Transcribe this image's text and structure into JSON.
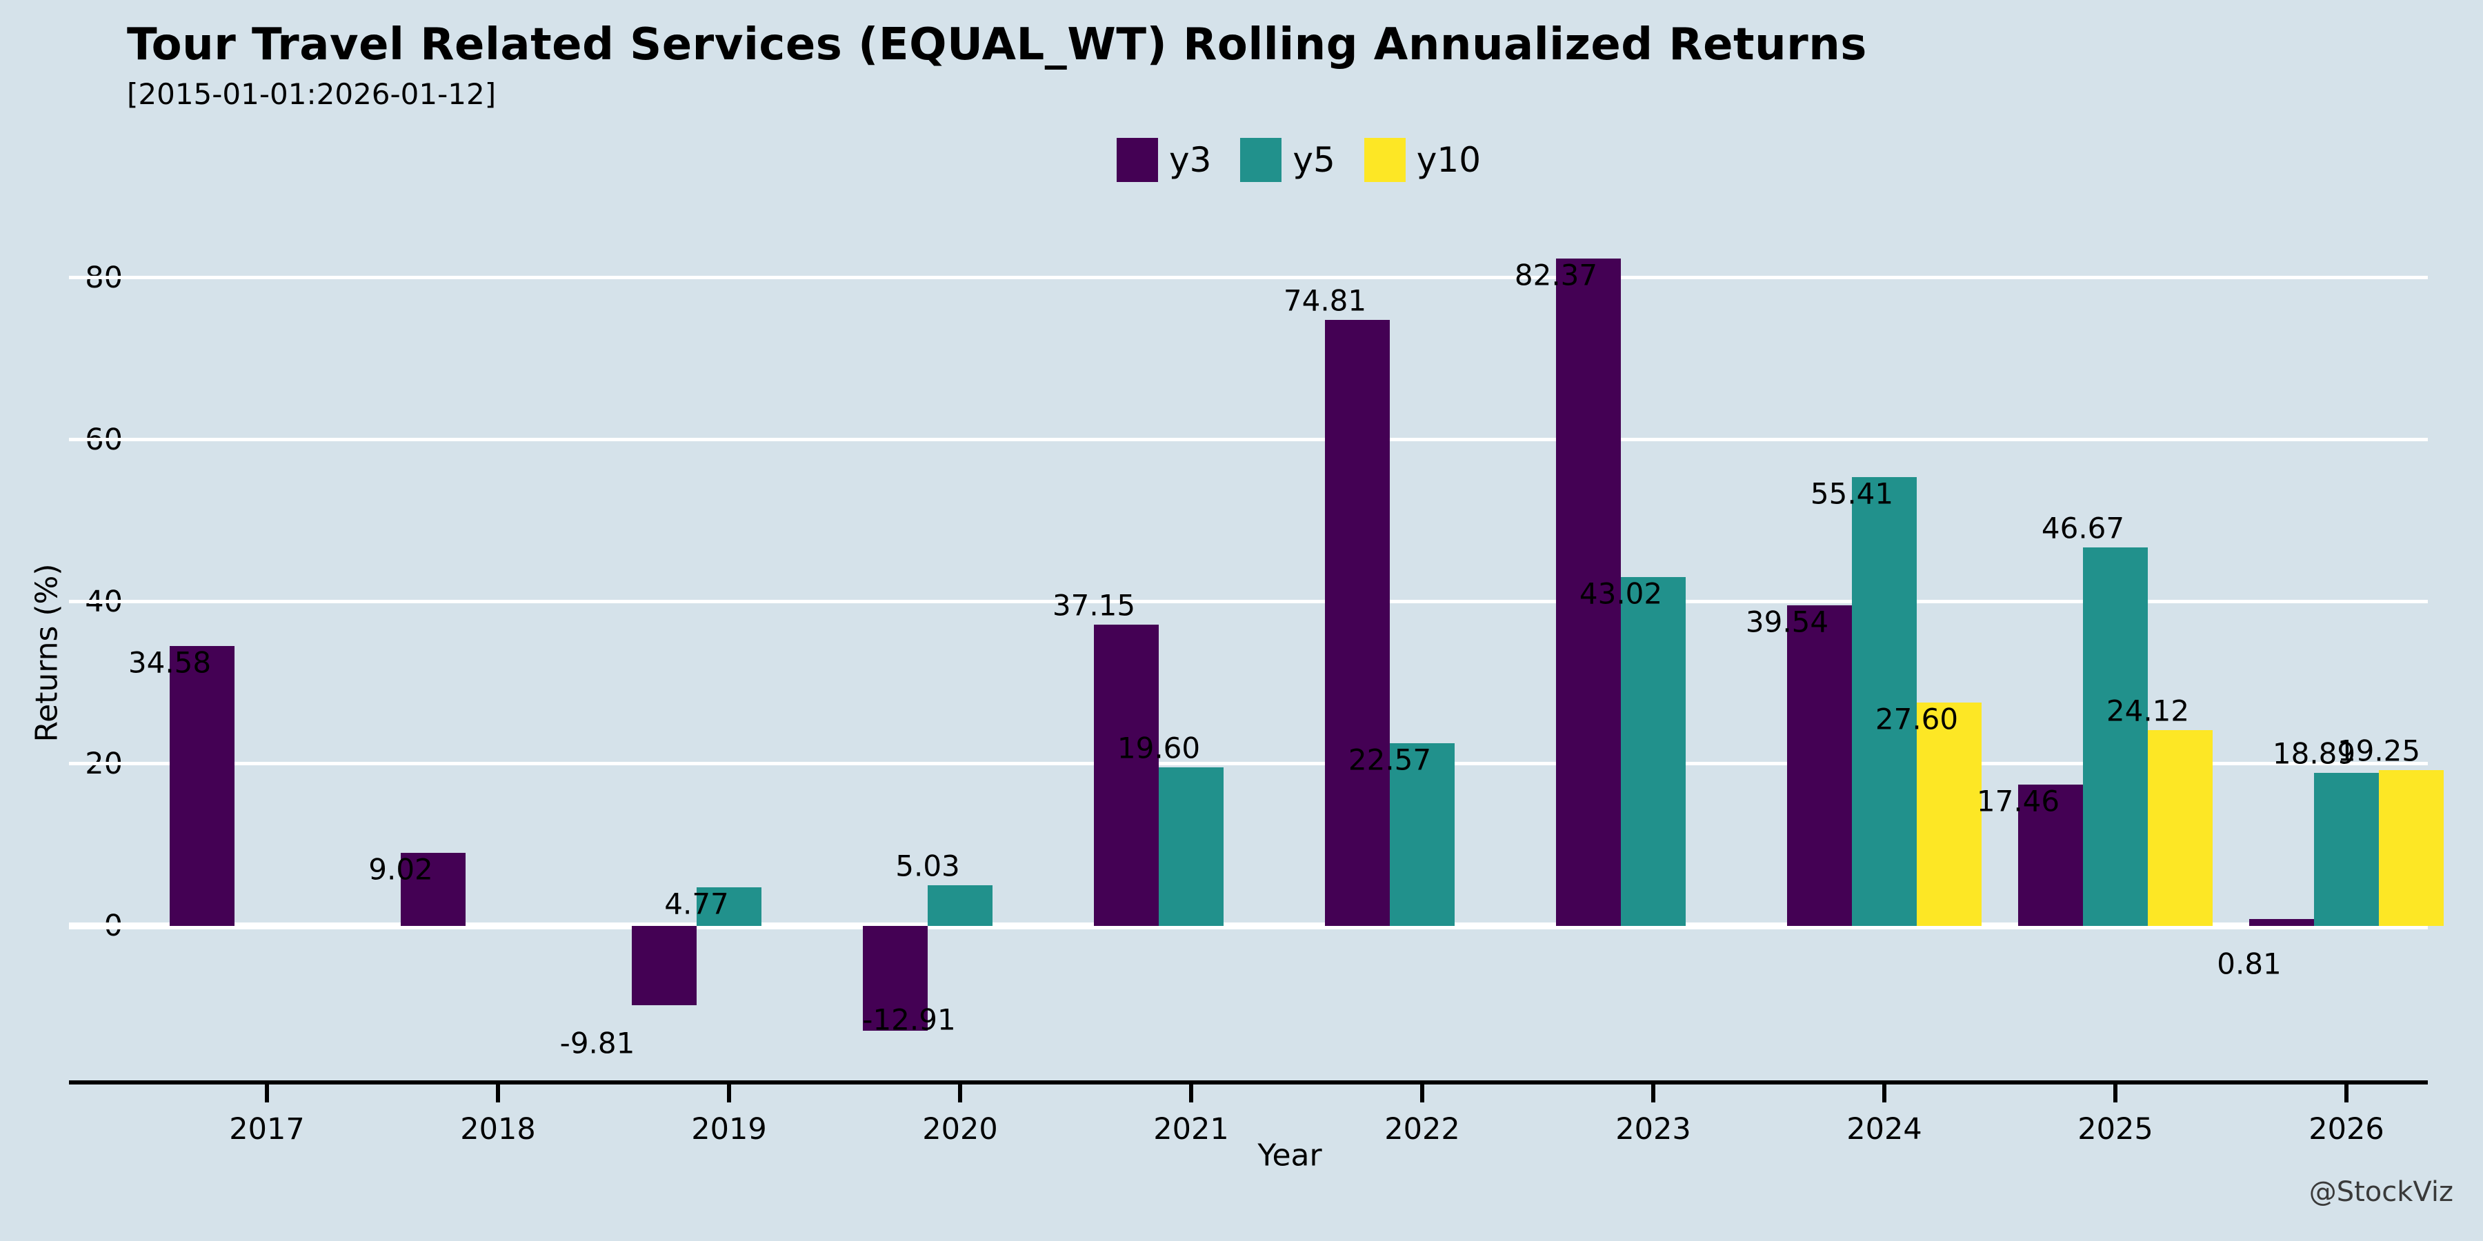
{
  "header": {
    "title": "Tour Travel Related Services (EQUAL_WT) Rolling Annualized Returns",
    "subtitle": "[2015-01-01:2026-01-12]"
  },
  "watermark": "@StockViz",
  "colors": {
    "background": "#d5e2ea",
    "gridline": "#ffffff",
    "axis": "#000000",
    "y3": "#440154",
    "y5": "#21918c",
    "y10": "#fde725"
  },
  "chart_data": {
    "type": "bar",
    "title": "Tour Travel Related Services (EQUAL_WT) Rolling Annualized Returns",
    "subtitle": "[2015-01-01:2026-01-12]",
    "xlabel": "Year",
    "ylabel": "Returns (%)",
    "categories": [
      "2017",
      "2018",
      "2019",
      "2020",
      "2021",
      "2022",
      "2023",
      "2024",
      "2025",
      "2026"
    ],
    "yticks": [
      0,
      20,
      40,
      60,
      80
    ],
    "ylim": [
      -20.5,
      92
    ],
    "grid": true,
    "legend_position": "top-center",
    "series": [
      {
        "name": "y3",
        "color": "#440154",
        "values": [
          34.58,
          9.02,
          -9.81,
          -12.91,
          37.15,
          74.81,
          82.37,
          39.54,
          17.46,
          0.81
        ],
        "labels": [
          "34.58",
          "9.02",
          "-9.81",
          "-12.91",
          "37.15",
          "74.81",
          "82.37",
          "39.54",
          "17.46",
          "0.81"
        ],
        "label_pos": [
          "overlap",
          "overlap",
          "below-left",
          "inside-bottom",
          "above",
          "above",
          "overlap",
          "overlap",
          "overlap",
          "below"
        ]
      },
      {
        "name": "y5",
        "color": "#21918c",
        "values": [
          null,
          null,
          4.77,
          5.03,
          19.6,
          22.57,
          43.02,
          55.41,
          46.67,
          18.89
        ],
        "labels": [
          null,
          null,
          "4.77",
          "5.03",
          "19.60",
          "22.57",
          "43.02",
          "55.41",
          "46.67",
          "18.89"
        ],
        "label_pos": [
          null,
          null,
          "overlap",
          "above",
          "above",
          "overlap",
          "overlap",
          "overlap",
          "above",
          "above"
        ]
      },
      {
        "name": "y10",
        "color": "#fde725",
        "values": [
          null,
          null,
          null,
          null,
          null,
          null,
          null,
          27.6,
          24.12,
          19.25
        ],
        "labels": [
          null,
          null,
          null,
          null,
          null,
          null,
          null,
          "27.60",
          "24.12",
          "19.25"
        ],
        "label_pos": [
          null,
          null,
          null,
          null,
          null,
          null,
          null,
          "overlap",
          "above",
          "above"
        ]
      }
    ]
  }
}
